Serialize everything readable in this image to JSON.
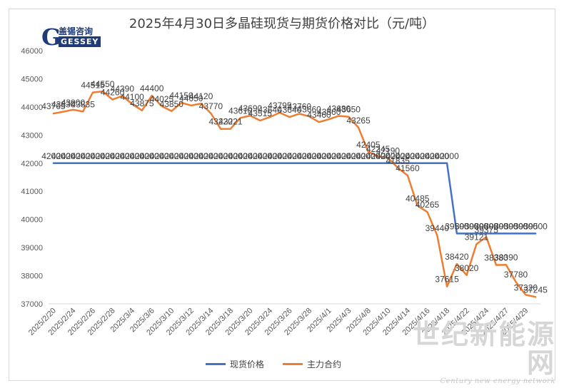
{
  "colors": {
    "spot": "#4472c4",
    "futures": "#ed7d31",
    "axis_text": "#595959",
    "grid": "#d9d9d9"
  },
  "logo": {
    "cn": "盖锡咨询",
    "en": "GESSEY",
    "mark": "G"
  },
  "watermark": {
    "cn": "世纪新能源网",
    "en": "Century new energy network"
  },
  "chart_data": {
    "type": "line",
    "title": "2025年4月30日多晶硅现货与期货价格对比（元/吨）",
    "xlabel": "",
    "ylabel": "",
    "ylim": [
      37000,
      46000
    ],
    "yticks": [
      37000,
      38000,
      39000,
      40000,
      41000,
      42000,
      43000,
      44000,
      45000,
      46000
    ],
    "grid": false,
    "legend_position": "bottom",
    "x": [
      "2025/2/20",
      "2025/2/21",
      "2025/2/24",
      "2025/2/25",
      "2025/2/26",
      "2025/2/27",
      "2025/2/28",
      "2025/3/3",
      "2025/3/4",
      "2025/3/5",
      "2025/3/6",
      "2025/3/7",
      "2025/3/10",
      "2025/3/11",
      "2025/3/12",
      "2025/3/13",
      "2025/3/14",
      "2025/3/17",
      "2025/3/18",
      "2025/3/19",
      "2025/3/20",
      "2025/3/21",
      "2025/3/24",
      "2025/3/25",
      "2025/3/26",
      "2025/3/27",
      "2025/3/28",
      "2025/3/31",
      "2025/4/1",
      "2025/4/2",
      "2025/4/3",
      "2025/4/7",
      "2025/4/8",
      "2025/4/9",
      "2025/4/10",
      "2025/4/11",
      "2025/4/14",
      "2025/4/15",
      "2025/4/16",
      "2025/4/17",
      "2025/4/18",
      "2025/4/21",
      "2025/4/22",
      "2025/4/23",
      "2025/4/24",
      "2025/4/25",
      "2025/4/27",
      "2025/4/28",
      "2025/4/29",
      "2025/4/30"
    ],
    "tick_labels": [
      "2025/2/20",
      "2025/2/24",
      "2025/2/26",
      "2025/2/28",
      "2025/3/4",
      "2025/3/6",
      "2025/3/10",
      "2025/3/12",
      "2025/3/14",
      "2025/3/18",
      "2025/3/20",
      "2025/3/24",
      "2025/3/26",
      "2025/3/28",
      "2025/4/1",
      "2025/4/3",
      "2025/4/8",
      "2025/4/10",
      "2025/4/14",
      "2025/4/16",
      "2025/4/18",
      "2025/4/22",
      "2025/4/24",
      "2025/4/27",
      "2025/4/29"
    ],
    "series": [
      {
        "name": "现货价格",
        "color": "#4472c4",
        "values": [
          42000,
          42000,
          42000,
          42000,
          42000,
          42000,
          42000,
          42000,
          42000,
          42000,
          42000,
          42000,
          42000,
          42000,
          42000,
          42000,
          42000,
          42000,
          42000,
          42000,
          42000,
          42000,
          42000,
          42000,
          42000,
          42000,
          42000,
          42000,
          42000,
          42000,
          42000,
          42000,
          42000,
          42000,
          42000,
          42000,
          42000,
          42000,
          42000,
          42000,
          42000,
          39500,
          39500,
          39500,
          39500,
          39500,
          39500,
          39500,
          39500,
          39500
        ]
      },
      {
        "name": "主力合约",
        "color": "#ed7d31",
        "values": [
          43765,
          43830,
          43900,
          43835,
          44515,
          44550,
          44260,
          44390,
          44100,
          43875,
          44400,
          44025,
          43850,
          44150,
          44050,
          44120,
          43770,
          43220,
          43221,
          43610,
          43690,
          43515,
          43640,
          43795,
          43640,
          43760,
          43660,
          43460,
          43560,
          43680,
          43650,
          43265,
          42405,
          42245,
          42190,
          41835,
          41560,
          40485,
          40265,
          39440,
          37615,
          38420,
          38020,
          39121,
          39375,
          38380,
          38390,
          37780,
          37320,
          37245
        ]
      }
    ]
  }
}
